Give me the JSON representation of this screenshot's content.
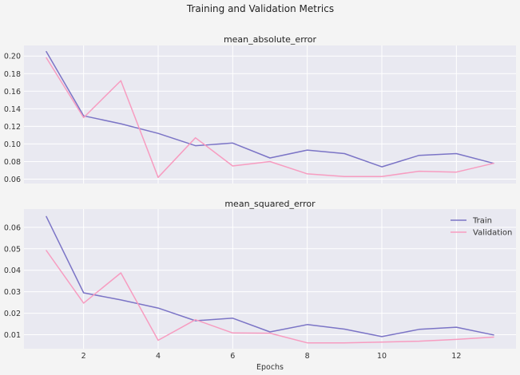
{
  "figure": {
    "title": "Training and Validation Metrics",
    "background": "#f4f4f4",
    "plot_background": "#e9e9f1",
    "grid_color": "#ffffff"
  },
  "chart_data": [
    {
      "type": "line",
      "title": "mean_absolute_error",
      "xlabel": "",
      "ylabel": "",
      "x": [
        1,
        2,
        3,
        4,
        5,
        6,
        7,
        8,
        9,
        10,
        11,
        12,
        13
      ],
      "xlim": [
        0.4,
        13.6
      ],
      "ylim": [
        0.055,
        0.212
      ],
      "xticks": [
        2,
        4,
        6,
        8,
        10,
        12
      ],
      "show_xtick_labels": false,
      "yticks": [
        0.06,
        0.08,
        0.1,
        0.12,
        0.14,
        0.16,
        0.18,
        0.2
      ],
      "ytick_labels": [
        "0.06",
        "0.08",
        "0.10",
        "0.12",
        "0.14",
        "0.16",
        "0.18",
        "0.20"
      ],
      "grid": true,
      "series": [
        {
          "key": "train",
          "color": "#7b74c6",
          "values": [
            0.205,
            0.132,
            0.123,
            0.112,
            0.098,
            0.101,
            0.084,
            0.093,
            0.089,
            0.074,
            0.087,
            0.089,
            0.078
          ]
        },
        {
          "key": "validation",
          "color": "#f79cc0",
          "values": [
            0.198,
            0.13,
            0.172,
            0.062,
            0.107,
            0.075,
            0.08,
            0.066,
            0.063,
            0.063,
            0.069,
            0.068,
            0.078
          ]
        }
      ]
    },
    {
      "type": "line",
      "title": "mean_squared_error",
      "xlabel": "Epochs",
      "ylabel": "",
      "x": [
        1,
        2,
        3,
        4,
        5,
        6,
        7,
        8,
        9,
        10,
        11,
        12,
        13
      ],
      "xlim": [
        0.4,
        13.6
      ],
      "ylim": [
        0.0035,
        0.0685
      ],
      "xticks": [
        2,
        4,
        6,
        8,
        10,
        12
      ],
      "xtick_labels": [
        "2",
        "4",
        "6",
        "8",
        "10",
        "12"
      ],
      "show_xtick_labels": true,
      "yticks": [
        0.01,
        0.02,
        0.03,
        0.04,
        0.05,
        0.06
      ],
      "ytick_labels": [
        "0.01",
        "0.02",
        "0.03",
        "0.04",
        "0.05",
        "0.06"
      ],
      "grid": true,
      "legend": {
        "position": "top-right",
        "entries": [
          {
            "label": "Train",
            "color": "#7b74c6"
          },
          {
            "label": "Validation",
            "color": "#f79cc0"
          }
        ]
      },
      "series": [
        {
          "key": "train",
          "name": "Train",
          "color": "#7b74c6",
          "values": [
            0.065,
            0.0295,
            0.0262,
            0.0224,
            0.0165,
            0.0177,
            0.0113,
            0.0147,
            0.0126,
            0.0091,
            0.0125,
            0.0135,
            0.0099
          ]
        },
        {
          "key": "validation",
          "name": "Validation",
          "color": "#f79cc0",
          "values": [
            0.0492,
            0.0247,
            0.0388,
            0.0074,
            0.017,
            0.0108,
            0.0107,
            0.0062,
            0.0062,
            0.0066,
            0.007,
            0.0078,
            0.0089
          ]
        }
      ]
    }
  ]
}
